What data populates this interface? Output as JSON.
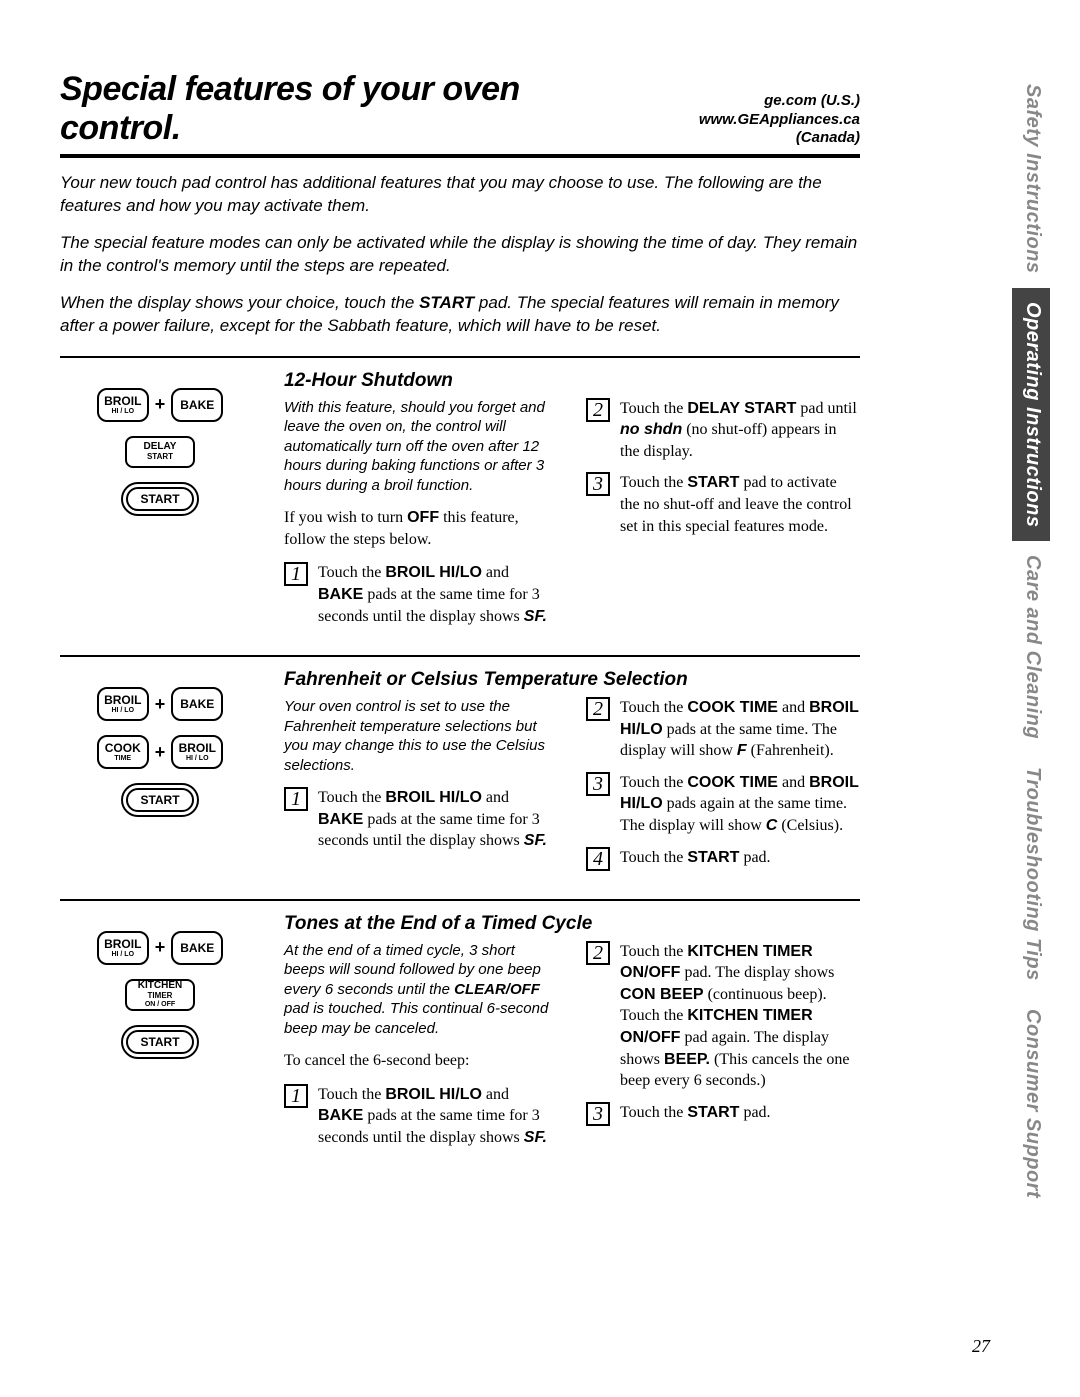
{
  "header": {
    "title": "Special features of your oven control.",
    "url_us": "ge.com (U.S.)",
    "url_ca": "www.GEAppliances.ca (Canada)"
  },
  "tabs": {
    "safety": "Safety Instructions",
    "operating": "Operating Instructions",
    "care": "Care and Cleaning",
    "troubleshooting": "Troubleshooting Tips",
    "consumer": "Consumer Support"
  },
  "intro": {
    "p1": "Your new touch pad control has additional features that you may choose to use. The following are the features and how you may activate them.",
    "p2": "The special feature modes can only be activated while the display is showing the time of day. They remain in the control's memory until the steps are repeated.",
    "p3a": "When the display shows your choice, touch the ",
    "p3b": "START",
    "p3c": " pad. The special features will remain in memory after a power failure, except for the Sabbath feature, which will have to be reset."
  },
  "pads": {
    "broil": "BROIL",
    "hilo": "HI / LO",
    "bake": "BAKE",
    "delay": "DELAY",
    "start_small": "START",
    "start": "START",
    "cook": "COOK",
    "time": "TIME",
    "kitchen": "KITCHEN",
    "timer": "TIMER",
    "onoff": "ON / OFF",
    "plus": "+"
  },
  "s1": {
    "title": "12-Hour Shutdown",
    "lead": "With this feature, should you forget and leave the oven on, the control will automatically turn off the oven after 12 hours during baking functions or after 3 hours during a broil function.",
    "p1a": "If you wish to turn ",
    "p1b": "OFF",
    "p1c": " this feature, follow the steps below.",
    "step1a": "Touch the ",
    "step1b": "BROIL HI/LO",
    "step1c": " and ",
    "step1d": "BAKE",
    "step1e": " pads at the same time for 3 seconds until the display shows ",
    "step1f": "SF.",
    "step2a": "Touch the ",
    "step2b": "DELAY START",
    "step2c": " pad until ",
    "step2d": "no shdn",
    "step2e": " (no shut-off) appears in the display.",
    "step3a": "Touch the ",
    "step3b": "START",
    "step3c": " pad to activate the no shut-off and leave the control set in this special features mode."
  },
  "s2": {
    "title": "Fahrenheit or Celsius Temperature Selection",
    "lead": "Your oven control is set to use the Fahrenheit temperature selections but you may change this to use the Celsius selections.",
    "step1a": "Touch the ",
    "step1b": "BROIL HI/LO",
    "step1c": " and ",
    "step1d": "BAKE",
    "step1e": " pads at the same time for 3 seconds until the display shows ",
    "step1f": "SF.",
    "step2a": "Touch the ",
    "step2b": "COOK TIME",
    "step2c": " and ",
    "step2d": "BROIL HI/LO",
    "step2e": " pads at the same time. The display will show ",
    "step2f": "F",
    "step2g": " (Fahrenheit).",
    "step3a": "Touch the ",
    "step3b": "COOK TIME",
    "step3c": " and ",
    "step3d": "BROIL HI/LO",
    "step3e": " pads again at the same time. The display will show ",
    "step3f": "C",
    "step3g": " (Celsius).",
    "step4a": "Touch the ",
    "step4b": "START",
    "step4c": " pad."
  },
  "s3": {
    "title": "Tones at the End of a Timed Cycle",
    "leada": "At the end of a timed cycle, 3 short beeps will sound followed by one beep every 6 seconds until the ",
    "leadb": "CLEAR/OFF",
    "leadc": " pad is touched. This continual 6-second beep may be canceled.",
    "p1": "To cancel the 6-second beep:",
    "step1a": "Touch the ",
    "step1b": "BROIL HI/LO",
    "step1c": " and ",
    "step1d": "BAKE",
    "step1e": " pads at the same time for 3 seconds until the display shows ",
    "step1f": "SF.",
    "step2a": "Touch the ",
    "step2b": "KITCHEN TIMER ON/OFF",
    "step2c": " pad. The display shows ",
    "step2d": "CON BEEP",
    "step2e": " (continuous beep). Touch the ",
    "step2f": "KITCHEN TIMER ON/OFF",
    "step2g": " pad again. The display shows ",
    "step2h": "BEEP.",
    "step2i": " (This cancels the one beep every 6 seconds.)",
    "step3a": "Touch the ",
    "step3b": "START",
    "step3c": " pad."
  },
  "page_number": "27"
}
